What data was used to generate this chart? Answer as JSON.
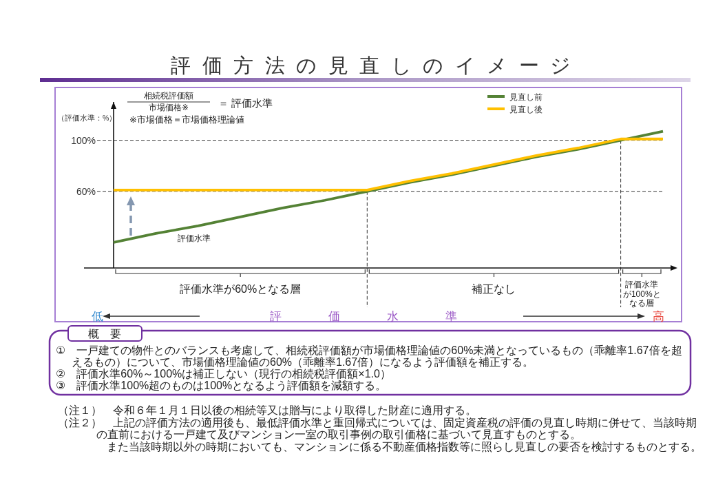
{
  "chart_data": {
    "type": "line",
    "title": "評価方法の見直しのイメージ",
    "xlabel": "評価水準",
    "ylabel": "（評価水準：%）",
    "categories": [
      null,
      null,
      null,
      null,
      null,
      null,
      null,
      null,
      null,
      null,
      null,
      null,
      null,
      null
    ],
    "series": [
      {
        "name": "見直し前",
        "color": "#548235",
        "values": [
          20,
          27,
          33,
          40,
          47,
          53,
          60,
          67,
          73,
          80,
          87,
          93,
          100,
          107
        ]
      },
      {
        "name": "見直し後",
        "color": "#ffc000",
        "values": [
          61,
          61,
          61,
          61,
          61,
          61,
          61,
          68,
          74,
          81,
          88,
          94,
          101,
          101
        ]
      }
    ],
    "ylim": [
      0,
      130
    ],
    "yticks": [
      {
        "value": 60,
        "label": "60%"
      },
      {
        "value": 100,
        "label": "100%"
      }
    ],
    "grid": "y",
    "legend": "top right",
    "tick_labels": "y",
    "annotations": [
      "相続税評価額",
      "市場価格※",
      "＝ 評価水準",
      "※市場価格＝市場価格理論値",
      "評価水準",
      "評価水準が60%となる層",
      "補正なし",
      "評価水準が100%となる層",
      "低",
      "高",
      "概　要",
      "①　一戸建ての物件とのバランスも考慮して、相続税評価額が市場価格理論値の60%未満となっているもの（乖離率1.67倍を超えるもの）について、市場価格理論値の60%（乖離率1.67倍）になるよう評価額を補正する。",
      "②　評価水準60%～100%は補正しない（現行の相続税評価額×1.0）",
      "③　評価水準100%超のものは100%となるよう評価額を減額する。",
      "（注１）　令和６年１月１日以後の相続等又は贈与により取得した財産に適用する。",
      "（注２）　上記の評価方法の適用後も、最低評価水準と重回帰式については、固定資産税の評価の見直し時期に併せて、当該時期の直前における一戸建て及びマンション一室の取引事例の取引価格に基づいて見直すものとする。",
      "また当該時期以外の時期においても、マンションに係る不動産価格指数等に照らし見直しの要否を検討するものとする。"
    ]
  }
}
